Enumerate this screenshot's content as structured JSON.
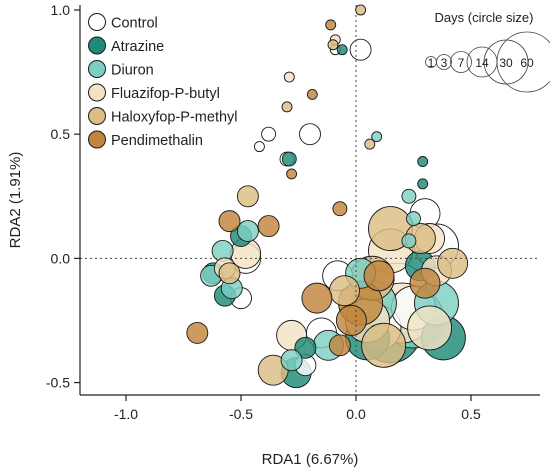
{
  "chart_data": {
    "type": "scatter",
    "xlabel": "RDA1 (6.67%)",
    "ylabel": "RDA2 (1.91%)",
    "xlim": [
      -1.2,
      0.8
    ],
    "ylim": [
      -0.55,
      1.02
    ],
    "xticks": [
      -1.0,
      -0.5,
      0.0,
      0.5
    ],
    "xtick_labels": [
      "-1.0",
      "-0.5",
      "0.0",
      "0.5"
    ],
    "yticks": [
      -0.5,
      0.0,
      0.5,
      1.0
    ],
    "ytick_labels": [
      "-0.5",
      "0.0",
      "0.5",
      "1.0"
    ],
    "reference_lines": {
      "x": 0,
      "y": 0,
      "style": "dotted"
    },
    "legend_position": "top-left",
    "size_legend": {
      "title": "Days (circle size)",
      "days": [
        1,
        3,
        7,
        14,
        30,
        60
      ],
      "labels": [
        "1",
        "3",
        "7",
        "14",
        "30",
        "60"
      ]
    },
    "series": [
      {
        "name": "Control",
        "color": "#ffffff",
        "points": [
          {
            "x": 0.02,
            "y": 0.84,
            "day": 7
          },
          {
            "x": -0.2,
            "y": 0.5,
            "day": 7
          },
          {
            "x": -0.38,
            "y": 0.5,
            "day": 3
          },
          {
            "x": -0.42,
            "y": 0.45,
            "day": 1
          },
          {
            "x": -0.3,
            "y": 0.4,
            "day": 3
          },
          {
            "x": -0.09,
            "y": 0.84,
            "day": 1
          },
          {
            "x": -0.48,
            "y": 0.0,
            "day": 14
          },
          {
            "x": -0.5,
            "y": -0.16,
            "day": 7
          },
          {
            "x": -0.08,
            "y": -0.07,
            "day": 14
          },
          {
            "x": 0.3,
            "y": 0.18,
            "day": 14
          },
          {
            "x": 0.35,
            "y": 0.05,
            "day": 30
          },
          {
            "x": 0.18,
            "y": -0.14,
            "day": 60
          },
          {
            "x": 0.1,
            "y": -0.28,
            "day": 30
          },
          {
            "x": -0.15,
            "y": -0.3,
            "day": 14
          },
          {
            "x": -0.22,
            "y": -0.43,
            "day": 7
          },
          {
            "x": 0.25,
            "y": -0.2,
            "day": 30
          }
        ]
      },
      {
        "name": "Atrazine",
        "color": "#1f8a78",
        "points": [
          {
            "x": -0.29,
            "y": 0.4,
            "day": 3
          },
          {
            "x": 0.29,
            "y": 0.39,
            "day": 1
          },
          {
            "x": 0.29,
            "y": 0.3,
            "day": 1
          },
          {
            "x": -0.06,
            "y": 0.84,
            "day": 1
          },
          {
            "x": -0.57,
            "y": -0.15,
            "day": 7
          },
          {
            "x": -0.5,
            "y": 0.09,
            "day": 7
          },
          {
            "x": 0.28,
            "y": -0.03,
            "day": 14
          },
          {
            "x": 0.15,
            "y": -0.3,
            "day": 60
          },
          {
            "x": 0.05,
            "y": -0.32,
            "day": 30
          },
          {
            "x": -0.22,
            "y": -0.36,
            "day": 7
          },
          {
            "x": -0.26,
            "y": -0.46,
            "day": 14
          },
          {
            "x": 0.38,
            "y": -0.32,
            "day": 30
          },
          {
            "x": -0.62,
            "y": -0.06,
            "day": 7
          }
        ]
      },
      {
        "name": "Diuron",
        "color": "#7ccfc3",
        "points": [
          {
            "x": 0.09,
            "y": 0.49,
            "day": 1
          },
          {
            "x": 0.25,
            "y": 0.16,
            "day": 3
          },
          {
            "x": 0.23,
            "y": 0.25,
            "day": 3
          },
          {
            "x": 0.23,
            "y": 0.07,
            "day": 3
          },
          {
            "x": -0.58,
            "y": 0.03,
            "day": 7
          },
          {
            "x": -0.63,
            "y": -0.07,
            "day": 7
          },
          {
            "x": -0.47,
            "y": 0.11,
            "day": 7
          },
          {
            "x": 0.25,
            "y": -0.24,
            "day": 60
          },
          {
            "x": 0.08,
            "y": -0.18,
            "day": 30
          },
          {
            "x": 0.35,
            "y": -0.18,
            "day": 30
          },
          {
            "x": -0.28,
            "y": -0.41,
            "day": 7
          },
          {
            "x": -0.12,
            "y": -0.35,
            "day": 14
          },
          {
            "x": -0.54,
            "y": -0.12,
            "day": 7
          },
          {
            "x": 0.02,
            "y": -0.06,
            "day": 14
          }
        ]
      },
      {
        "name": "Fluazifop-P-butyl",
        "color": "#f3e3c4",
        "points": [
          {
            "x": -0.29,
            "y": 0.73,
            "day": 1
          },
          {
            "x": -0.09,
            "y": 0.88,
            "day": 1
          },
          {
            "x": -0.57,
            "y": -0.04,
            "day": 7
          },
          {
            "x": -0.48,
            "y": 0.02,
            "day": 14
          },
          {
            "x": 0.15,
            "y": 0.03,
            "day": 30
          },
          {
            "x": 0.32,
            "y": 0.08,
            "day": 14
          },
          {
            "x": 0.2,
            "y": -0.22,
            "day": 60
          },
          {
            "x": 0.05,
            "y": -0.25,
            "day": 30
          },
          {
            "x": -0.28,
            "y": -0.31,
            "day": 14
          },
          {
            "x": 0.32,
            "y": -0.28,
            "day": 30
          },
          {
            "x": 0.35,
            "y": -0.05,
            "day": 14
          }
        ]
      },
      {
        "name": "Haloxyfop-P-methyl",
        "color": "#dcbd84",
        "points": [
          {
            "x": 0.02,
            "y": 1.0,
            "day": 1
          },
          {
            "x": -0.1,
            "y": 0.86,
            "day": 1
          },
          {
            "x": -0.3,
            "y": 0.61,
            "day": 1
          },
          {
            "x": 0.06,
            "y": 0.46,
            "day": 1
          },
          {
            "x": -0.47,
            "y": 0.25,
            "day": 7
          },
          {
            "x": 0.15,
            "y": 0.12,
            "day": 30
          },
          {
            "x": 0.07,
            "y": -0.08,
            "day": 30
          },
          {
            "x": 0.42,
            "y": -0.02,
            "day": 14
          },
          {
            "x": -0.36,
            "y": -0.45,
            "day": 14
          },
          {
            "x": -0.55,
            "y": -0.06,
            "day": 7
          },
          {
            "x": 0.28,
            "y": 0.08,
            "day": 14
          },
          {
            "x": 0.12,
            "y": -0.35,
            "day": 30
          },
          {
            "x": -0.05,
            "y": -0.13,
            "day": 14
          }
        ]
      },
      {
        "name": "Pendimethalin",
        "color": "#c2853c",
        "points": [
          {
            "x": -0.11,
            "y": 0.94,
            "day": 1
          },
          {
            "x": -0.19,
            "y": 0.66,
            "day": 1
          },
          {
            "x": -0.28,
            "y": 0.34,
            "day": 1
          },
          {
            "x": -0.07,
            "y": 0.2,
            "day": 3
          },
          {
            "x": -0.69,
            "y": -0.3,
            "day": 7
          },
          {
            "x": -0.55,
            "y": 0.15,
            "day": 7
          },
          {
            "x": -0.38,
            "y": 0.13,
            "day": 7
          },
          {
            "x": -0.17,
            "y": -0.16,
            "day": 14
          },
          {
            "x": -0.07,
            "y": -0.35,
            "day": 7
          },
          {
            "x": 0.02,
            "y": -0.18,
            "day": 30
          },
          {
            "x": 0.1,
            "y": -0.07,
            "day": 14
          },
          {
            "x": -0.02,
            "y": -0.25,
            "day": 14
          },
          {
            "x": 0.3,
            "y": -0.1,
            "day": 14
          }
        ]
      }
    ]
  }
}
